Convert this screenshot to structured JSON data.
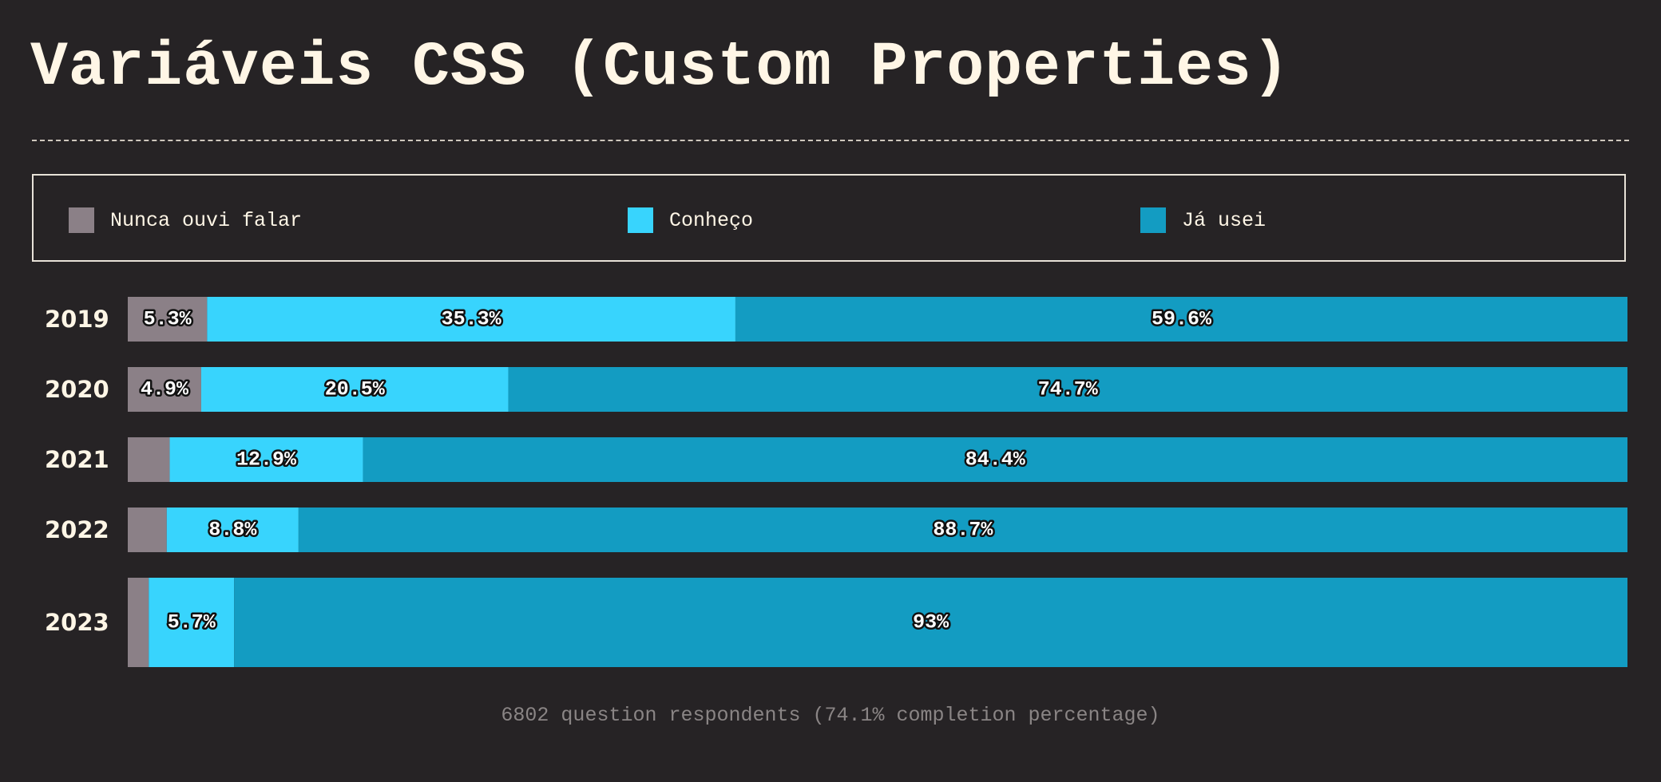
{
  "title": "Variáveis CSS (Custom Properties)",
  "footer": "6802 question respondents (74.1% completion percentage)",
  "chart_data": {
    "type": "bar",
    "orientation": "horizontal",
    "stacked": true,
    "normalized_percent": true,
    "categories": [
      "2019",
      "2020",
      "2021",
      "2022",
      "2023"
    ],
    "series": [
      {
        "name": "Nunca ouvi falar",
        "color": "#8b8087",
        "values": [
          5.3,
          4.9,
          2.8,
          2.6,
          1.4
        ],
        "labels": [
          "5.3%",
          "4.9%",
          "",
          "",
          ""
        ]
      },
      {
        "name": "Conheço",
        "color": "#38d4fd",
        "values": [
          35.3,
          20.5,
          12.9,
          8.8,
          5.7
        ],
        "labels": [
          "35.3%",
          "20.5%",
          "12.9%",
          "8.8%",
          "5.7%"
        ]
      },
      {
        "name": "Já usei",
        "color": "#139cc2",
        "values": [
          59.6,
          74.7,
          84.4,
          88.7,
          93
        ],
        "labels": [
          "59.6%",
          "74.7%",
          "84.4%",
          "88.7%",
          "93%"
        ]
      }
    ],
    "xlim": [
      0,
      100
    ],
    "legend": "top",
    "grid": false
  }
}
